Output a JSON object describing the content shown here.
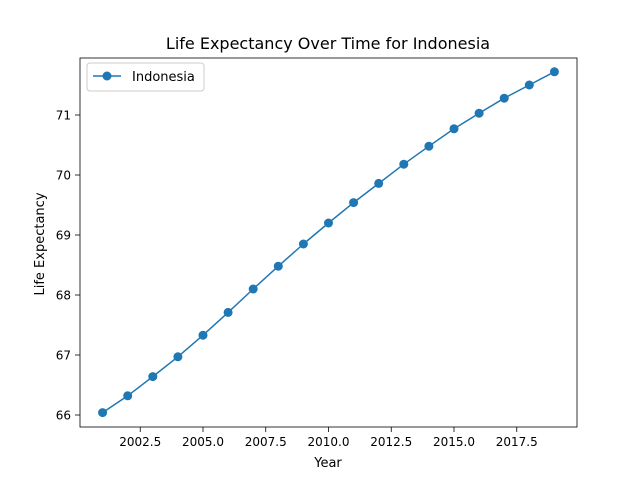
{
  "chart_data": {
    "type": "line",
    "title": "Life Expectancy Over Time for Indonesia",
    "xlabel": "Year",
    "ylabel": "Life Expectancy",
    "xlim": [
      2000.1,
      2019.9
    ],
    "ylim": [
      65.8,
      71.95
    ],
    "x_ticks": [
      2002.5,
      2005.0,
      2007.5,
      2010.0,
      2012.5,
      2015.0,
      2017.5
    ],
    "x_tick_labels": [
      "2002.5",
      "2005.0",
      "2007.5",
      "2010.0",
      "2012.5",
      "2015.0",
      "2017.5"
    ],
    "y_ticks": [
      66,
      67,
      68,
      69,
      70,
      71
    ],
    "y_tick_labels": [
      "66",
      "67",
      "68",
      "69",
      "70",
      "71"
    ],
    "grid": false,
    "legend_position": "top-left",
    "series": [
      {
        "name": "Indonesia",
        "color": "#1f77b4",
        "marker": "circle",
        "x": [
          2001,
          2002,
          2003,
          2004,
          2005,
          2006,
          2007,
          2008,
          2009,
          2010,
          2011,
          2012,
          2013,
          2014,
          2015,
          2016,
          2017,
          2018,
          2019
        ],
        "y": [
          66.04,
          66.32,
          66.64,
          66.97,
          67.33,
          67.71,
          68.1,
          68.48,
          68.85,
          69.2,
          69.54,
          69.86,
          70.18,
          70.48,
          70.77,
          71.03,
          71.28,
          71.5,
          71.72
        ]
      }
    ]
  }
}
